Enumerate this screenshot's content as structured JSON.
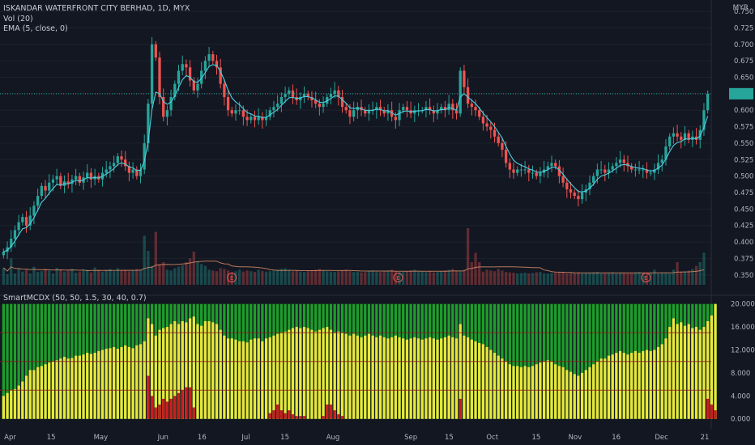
{
  "header": {
    "title": "ISKANDAR WATERFRONT CITY BERHAD, 1D, MYX",
    "volume_label": "Vol (20)",
    "ema_label": "EMA (5, close, 0)",
    "indicator_label": "SmartMCDX (50, 50, 1.5, 30, 40, 0.7)",
    "currency": "MYR"
  },
  "colors": {
    "background": "#131722",
    "up": "#26a69a",
    "down": "#ef5350",
    "ema": "#4dd0e1",
    "grid": "#1e222d",
    "green_bar": "#1e9e2a",
    "yellow_bar": "#e8e83a",
    "red_bar": "#c81e1e",
    "last_price_line": "#26a69a"
  },
  "chart_data": [
    {
      "type": "candlestick",
      "title": "ISKANDAR WATERFRONT CITY BERHAD, 1D, MYX",
      "ylabel": "MYR",
      "ylim": [
        0.335,
        0.755
      ],
      "y_ticks": [
        "0.750",
        "0.725",
        "0.700",
        "0.675",
        "0.650",
        "0.625",
        "0.600",
        "0.575",
        "0.550",
        "0.525",
        "0.500",
        "0.475",
        "0.450",
        "0.425",
        "0.400",
        "0.375",
        "0.350"
      ],
      "x_ticks": [
        "Apr",
        "15",
        "May",
        "Jun",
        "16",
        "Jul",
        "15",
        "Aug",
        "Sep",
        "15",
        "Oct",
        "15",
        "Nov",
        "16",
        "Dec",
        "21"
      ],
      "closes": [
        0.385,
        0.392,
        0.405,
        0.418,
        0.43,
        0.438,
        0.425,
        0.44,
        0.455,
        0.47,
        0.485,
        0.478,
        0.49,
        0.495,
        0.5,
        0.485,
        0.492,
        0.488,
        0.495,
        0.5,
        0.49,
        0.498,
        0.505,
        0.495,
        0.5,
        0.495,
        0.505,
        0.51,
        0.515,
        0.52,
        0.53,
        0.525,
        0.515,
        0.505,
        0.51,
        0.5,
        0.51,
        0.55,
        0.61,
        0.7,
        0.68,
        0.62,
        0.59,
        0.6,
        0.62,
        0.64,
        0.66,
        0.67,
        0.665,
        0.645,
        0.63,
        0.64,
        0.66,
        0.675,
        0.685,
        0.675,
        0.665,
        0.64,
        0.62,
        0.6,
        0.595,
        0.6,
        0.6,
        0.59,
        0.585,
        0.59,
        0.585,
        0.59,
        0.585,
        0.59,
        0.6,
        0.605,
        0.61,
        0.62,
        0.625,
        0.63,
        0.62,
        0.615,
        0.62,
        0.625,
        0.62,
        0.615,
        0.61,
        0.605,
        0.61,
        0.62,
        0.625,
        0.63,
        0.62,
        0.605,
        0.6,
        0.59,
        0.6,
        0.605,
        0.6,
        0.595,
        0.6,
        0.6,
        0.605,
        0.6,
        0.595,
        0.6,
        0.59,
        0.585,
        0.6,
        0.605,
        0.6,
        0.595,
        0.6,
        0.6,
        0.6,
        0.605,
        0.6,
        0.595,
        0.6,
        0.605,
        0.6,
        0.61,
        0.6,
        0.595,
        0.66,
        0.635,
        0.61,
        0.605,
        0.6,
        0.59,
        0.58,
        0.575,
        0.57,
        0.56,
        0.55,
        0.54,
        0.52,
        0.51,
        0.505,
        0.51,
        0.51,
        0.51,
        0.505,
        0.505,
        0.5,
        0.505,
        0.51,
        0.515,
        0.52,
        0.515,
        0.5,
        0.49,
        0.48,
        0.475,
        0.47,
        0.465,
        0.475,
        0.48,
        0.49,
        0.5,
        0.51,
        0.51,
        0.505,
        0.51,
        0.515,
        0.52,
        0.525,
        0.52,
        0.515,
        0.51,
        0.51,
        0.51,
        0.51,
        0.505,
        0.505,
        0.51,
        0.52,
        0.525,
        0.545,
        0.56,
        0.565,
        0.56,
        0.555,
        0.565,
        0.555,
        0.56,
        0.555,
        0.57,
        0.6,
        0.625
      ]
    },
    {
      "type": "bar",
      "title": "Vol (20)",
      "values": [
        45,
        28,
        70,
        30,
        42,
        35,
        40,
        30,
        48,
        34,
        36,
        42,
        38,
        30,
        45,
        40,
        35,
        38,
        42,
        32,
        35,
        38,
        40,
        33,
        46,
        40,
        35,
        38,
        42,
        36,
        44,
        38,
        40,
        36,
        39,
        42,
        40,
        130,
        90,
        50,
        140,
        55,
        60,
        40,
        38,
        44,
        48,
        52,
        60,
        70,
        88,
        62,
        55,
        50,
        40,
        38,
        36,
        44,
        42,
        38,
        34,
        36,
        40,
        35,
        38,
        36,
        34,
        40,
        37,
        35,
        36,
        38,
        40,
        42,
        44,
        40,
        36,
        38,
        35,
        34,
        36,
        38,
        40,
        42,
        38,
        36,
        35,
        34,
        36,
        38,
        40,
        36,
        34,
        35,
        33,
        34,
        36,
        38,
        35,
        34,
        36,
        38,
        40,
        36,
        34,
        35,
        36,
        38,
        40,
        36,
        35,
        34,
        36,
        33,
        34,
        36,
        38,
        40,
        42,
        38,
        36,
        40,
        150,
        60,
        85,
        60,
        35,
        40,
        38,
        36,
        42,
        38,
        34,
        33,
        32,
        30,
        31,
        32,
        30,
        31,
        33,
        34,
        30,
        29,
        31,
        32,
        33,
        34,
        30,
        31,
        32,
        33,
        30,
        31,
        32,
        33,
        34,
        30,
        31,
        32,
        33,
        30,
        31,
        32,
        30,
        31,
        33,
        34,
        30,
        31,
        32,
        40,
        30,
        31,
        32,
        30,
        40,
        60,
        35,
        36,
        38,
        42,
        50,
        60,
        85
      ],
      "ema_label": "Vol (20)"
    },
    {
      "type": "bar",
      "title": "SmartMCDX (50, 50, 1.5, 30, 40, 0.7)",
      "ylim": [
        -0.6,
        20.8
      ],
      "y_ticks": [
        "20.000",
        "16.000",
        "12.000",
        "8.000",
        "4.000",
        "0.000"
      ],
      "series": [
        {
          "color": "#1e9e2a",
          "values": "constant 20"
        },
        {
          "color": "#e8e83a",
          "values": [
            4,
            4.5,
            5,
            5.2,
            5.8,
            6.5,
            7.5,
            8.5,
            8.5,
            9,
            9.2,
            9.5,
            9.8,
            10,
            10.2,
            10.5,
            10.8,
            10.5,
            10.6,
            11,
            11,
            11.2,
            11.5,
            11.3,
            11.5,
            11.8,
            12,
            12.2,
            12.3,
            12.5,
            12.2,
            12.5,
            12.8,
            12.5,
            12.3,
            12.8,
            13,
            13.5,
            17.5,
            16.5,
            14.5,
            15.5,
            15.8,
            16,
            16.5,
            17,
            16.5,
            17,
            16.8,
            17.5,
            17.8,
            16.5,
            16.2,
            17,
            17,
            16.8,
            16.5,
            15.5,
            14.5,
            14,
            14,
            13.8,
            13.5,
            13.5,
            13.3,
            13.8,
            14,
            14,
            13.5,
            14,
            14.2,
            14.5,
            14.8,
            15,
            15.2,
            15.5,
            15.8,
            16,
            15.8,
            16,
            15.8,
            15.5,
            15.2,
            15.5,
            15.8,
            16,
            15.5,
            15,
            15.2,
            15,
            14.8,
            14.5,
            14.8,
            14.5,
            14.2,
            14.5,
            14.8,
            14.5,
            14.2,
            14.5,
            14.2,
            14,
            14.2,
            14.5,
            14.2,
            14,
            13.8,
            14,
            14.2,
            14,
            13.8,
            14,
            14.2,
            14,
            13.8,
            14,
            14.2,
            14.5,
            14.2,
            14,
            16.5,
            14.5,
            14.2,
            13.8,
            13.5,
            13.2,
            13,
            12.5,
            12,
            11.5,
            11,
            10.5,
            10,
            9.5,
            9.2,
            9.2,
            9,
            9.2,
            9,
            9.2,
            9.5,
            9.8,
            10,
            10.2,
            10,
            9.5,
            9.2,
            9,
            8.5,
            8.2,
            7.8,
            7.5,
            8,
            8.5,
            9,
            9.5,
            10,
            10.5,
            10.5,
            11,
            11.2,
            11.5,
            11.8,
            11.5,
            11.2,
            11.5,
            11.8,
            11.5,
            11.8,
            12,
            11.8,
            12,
            12.5,
            13,
            14,
            16,
            17.5,
            16.5,
            16.8,
            16.2,
            16.5,
            15.8,
            16,
            15.5,
            16,
            17,
            18,
            20
          ]
        },
        {
          "color": "#c81e1e",
          "values": [
            0,
            0,
            0,
            0,
            0,
            0,
            0,
            0,
            0,
            0,
            0,
            0,
            0,
            0,
            0,
            0,
            0,
            0,
            0,
            0,
            0,
            0,
            0,
            0,
            0,
            0,
            0,
            0,
            0,
            0,
            0,
            0,
            0,
            0,
            0,
            0,
            0,
            0,
            7.5,
            4,
            2,
            2.5,
            3.5,
            3,
            3.5,
            4,
            4.5,
            5,
            5.5,
            5.5,
            2,
            0,
            0,
            0,
            0,
            0,
            0,
            0,
            0,
            0,
            0,
            0,
            0,
            0,
            0,
            0,
            0,
            0,
            0,
            0,
            1,
            1.5,
            2.5,
            1.5,
            1,
            1.5,
            0.8,
            0.5,
            0.5,
            0.5,
            0,
            0,
            0,
            0,
            0.5,
            2.5,
            2.5,
            1.5,
            0.8,
            0.5,
            0,
            0,
            0,
            0,
            0,
            0,
            0,
            0,
            0,
            0,
            0,
            0,
            0,
            0,
            0,
            0,
            0,
            0,
            0,
            0,
            0,
            0,
            0,
            0,
            0,
            0,
            0,
            0,
            0,
            0,
            3.5,
            0,
            0,
            0,
            0,
            0,
            0,
            0,
            0,
            0,
            0,
            0,
            0,
            0,
            0,
            0,
            0,
            0,
            0,
            0,
            0,
            0,
            0,
            0,
            0,
            0,
            0,
            0,
            0,
            0,
            0,
            0,
            0,
            0,
            0,
            0,
            0,
            0,
            0,
            0,
            0,
            0,
            0,
            0,
            0,
            0,
            0,
            0,
            0,
            0,
            0,
            0,
            0,
            0,
            0,
            0,
            0,
            0,
            0,
            0,
            0,
            0,
            0,
            0,
            0,
            3.5,
            2.5,
            1.5,
            2,
            1,
            1.5,
            0.5,
            1,
            3,
            1.5,
            4,
            10
          ]
        }
      ]
    }
  ]
}
